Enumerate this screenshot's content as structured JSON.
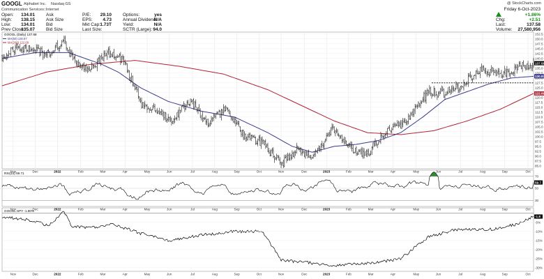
{
  "header": {
    "symbol": "GOOGL",
    "company": "Alphabet Inc.",
    "exchange": "Nasdaq GS",
    "sector": "Communication Services::Internet",
    "watermark": "@ StockCharts.com",
    "date": "Friday 6-Oct-2023",
    "left_col1": [
      {
        "label": "Open:",
        "value": "134.01"
      },
      {
        "label": "High:",
        "value": "138.15"
      },
      {
        "label": "Low:",
        "value": "134.01"
      },
      {
        "label": "Prev Close:",
        "value": "135.07"
      }
    ],
    "left_col2": [
      {
        "label": "Ask",
        "value": ""
      },
      {
        "label": "Ask Size",
        "value": ""
      },
      {
        "label": "Bid",
        "value": ""
      },
      {
        "label": "Bid Size",
        "value": ""
      }
    ],
    "mid_col1": [
      {
        "label": "P/E:",
        "value": "29.10"
      },
      {
        "label": "EPS:",
        "value": "4.73"
      },
      {
        "label": "Mkt Cap:",
        "value": "1.73T"
      },
      {
        "label": "Last Size:",
        "value": ""
      }
    ],
    "mid_col2": [
      {
        "label": "Options:",
        "value": "yes"
      },
      {
        "label": "Annual Dividend:",
        "value": "N/A"
      },
      {
        "label": "Yield:",
        "value": "N/A"
      },
      {
        "label": "SCTR (Large):",
        "value": "94.0"
      }
    ],
    "right_col": [
      {
        "label": "%",
        "value": "+1.86%"
      },
      {
        "label": "Chg:",
        "value": "+2.51"
      },
      {
        "label": "Last:",
        "value": "137.58"
      },
      {
        "label": "Volume:",
        "value": "27,580,956"
      }
    ],
    "change_color": "#1a8a1a"
  },
  "chart_data": [
    {
      "type": "line",
      "panel": "price",
      "title": "GOOGL (Daily) 137.58",
      "legend": [
        {
          "name": "GOOGL (Daily) 137.58",
          "color": "#000000"
        },
        {
          "name": "MA(50) 130.87",
          "color": "#3a3a8c"
        },
        {
          "name": "MA(200) 122.09",
          "color": "#b22234"
        }
      ],
      "x_tick_labels": [
        "Nov",
        "Dec",
        "2022",
        "Feb",
        "Mar",
        "Apr",
        "May",
        "Jun",
        "Jul",
        "Aug",
        "Sep",
        "Oct",
        "Nov",
        "Dec",
        "2023",
        "Feb",
        "Mar",
        "Apr",
        "May",
        "Jun",
        "Jul",
        "Aug",
        "Sep",
        "Oct"
      ],
      "y_tick_labels": [
        "152.5",
        "150.0",
        "147.5",
        "145.0",
        "142.5",
        "140.0",
        "137.5",
        "135.0",
        "132.5",
        "130.0",
        "127.5",
        "125.0",
        "122.5",
        "120.0",
        "117.5",
        "115.0",
        "112.5",
        "110.0",
        "107.5",
        "105.0",
        "102.5",
        "100.0",
        "97.5",
        "95.0",
        "92.5",
        "90.0",
        "87.5",
        "85.0"
      ],
      "ylim": [
        83.5,
        153.5
      ],
      "last_price": "137.58",
      "ma50_label": "130.87",
      "ma200_label": "122.09",
      "resistance_level": 127.5,
      "close_anchors": [
        [
          0,
          141
        ],
        [
          14,
          146
        ],
        [
          29,
          144
        ],
        [
          42,
          142
        ],
        [
          56,
          149
        ],
        [
          63,
          140
        ],
        [
          76,
          134
        ],
        [
          83,
          136
        ],
        [
          96,
          143
        ],
        [
          110,
          139
        ],
        [
          126,
          117
        ],
        [
          140,
          114
        ],
        [
          153,
          108
        ],
        [
          170,
          119
        ],
        [
          185,
          107
        ],
        [
          203,
          114
        ],
        [
          218,
          101
        ],
        [
          235,
          97
        ],
        [
          252,
          86
        ],
        [
          267,
          94
        ],
        [
          280,
          89
        ],
        [
          298,
          104
        ],
        [
          318,
          92
        ],
        [
          331,
          92
        ],
        [
          345,
          102
        ],
        [
          364,
          107
        ],
        [
          385,
          123
        ],
        [
          399,
          122
        ],
        [
          414,
          126
        ],
        [
          432,
          134
        ],
        [
          451,
          132
        ],
        [
          468,
          136
        ],
        [
          480,
          137.58
        ]
      ],
      "ma50_anchors": [
        [
          0,
          140
        ],
        [
          30,
          143
        ],
        [
          60,
          143
        ],
        [
          90,
          137
        ],
        [
          105,
          133
        ],
        [
          125,
          125
        ],
        [
          150,
          118
        ],
        [
          180,
          113
        ],
        [
          210,
          110
        ],
        [
          240,
          102
        ],
        [
          262,
          95
        ],
        [
          280,
          92
        ],
        [
          300,
          95
        ],
        [
          320,
          96
        ],
        [
          340,
          98
        ],
        [
          360,
          102
        ],
        [
          380,
          110
        ],
        [
          400,
          119
        ],
        [
          420,
          123
        ],
        [
          440,
          127
        ],
        [
          460,
          130
        ],
        [
          480,
          130.87
        ]
      ],
      "ma200_anchors": [
        [
          0,
          126
        ],
        [
          40,
          133
        ],
        [
          80,
          137
        ],
        [
          120,
          139
        ],
        [
          160,
          136
        ],
        [
          200,
          132
        ],
        [
          240,
          124
        ],
        [
          270,
          116
        ],
        [
          300,
          108
        ],
        [
          330,
          102
        ],
        [
          360,
          101
        ],
        [
          390,
          103
        ],
        [
          420,
          108
        ],
        [
          450,
          114
        ],
        [
          480,
          122.09
        ]
      ]
    },
    {
      "type": "line",
      "panel": "rsi",
      "title": "RSI(14) 59.71",
      "series": [
        {
          "name": "RSI(14) 59.71",
          "color": "#000000"
        }
      ],
      "y_tick_labels": [
        "70",
        "59.7",
        "50",
        "30"
      ],
      "ylim": [
        20,
        80
      ],
      "overbought": 70,
      "oversold": 30,
      "overbought_fill_color": "#2e8b2e",
      "last_value": "59.7"
    },
    {
      "type": "line",
      "panel": "relative",
      "title": "GOOGL:SPY -1.80%",
      "series": [
        {
          "name": "GOOGL:SPY -1.80%",
          "color": "#000000"
        }
      ],
      "y_tick_labels": [
        "-1.8",
        "-5%",
        "-10%",
        "-15%",
        "-20%",
        "-25%",
        "-30%"
      ],
      "ylim": [
        -32,
        3
      ],
      "last_value": "-1.8",
      "anchors": [
        [
          0,
          -2
        ],
        [
          14,
          -3
        ],
        [
          28,
          -4
        ],
        [
          42,
          -7
        ],
        [
          56,
          1
        ],
        [
          63,
          -7
        ],
        [
          80,
          -8
        ],
        [
          100,
          -6
        ],
        [
          125,
          -11
        ],
        [
          150,
          -15
        ],
        [
          180,
          -12
        ],
        [
          210,
          -10
        ],
        [
          235,
          -10
        ],
        [
          252,
          -26
        ],
        [
          275,
          -27
        ],
        [
          298,
          -29
        ],
        [
          318,
          -28
        ],
        [
          340,
          -27
        ],
        [
          360,
          -25
        ],
        [
          385,
          -13
        ],
        [
          410,
          -9
        ],
        [
          440,
          -9
        ],
        [
          465,
          -6
        ],
        [
          480,
          -1.8
        ]
      ]
    }
  ]
}
